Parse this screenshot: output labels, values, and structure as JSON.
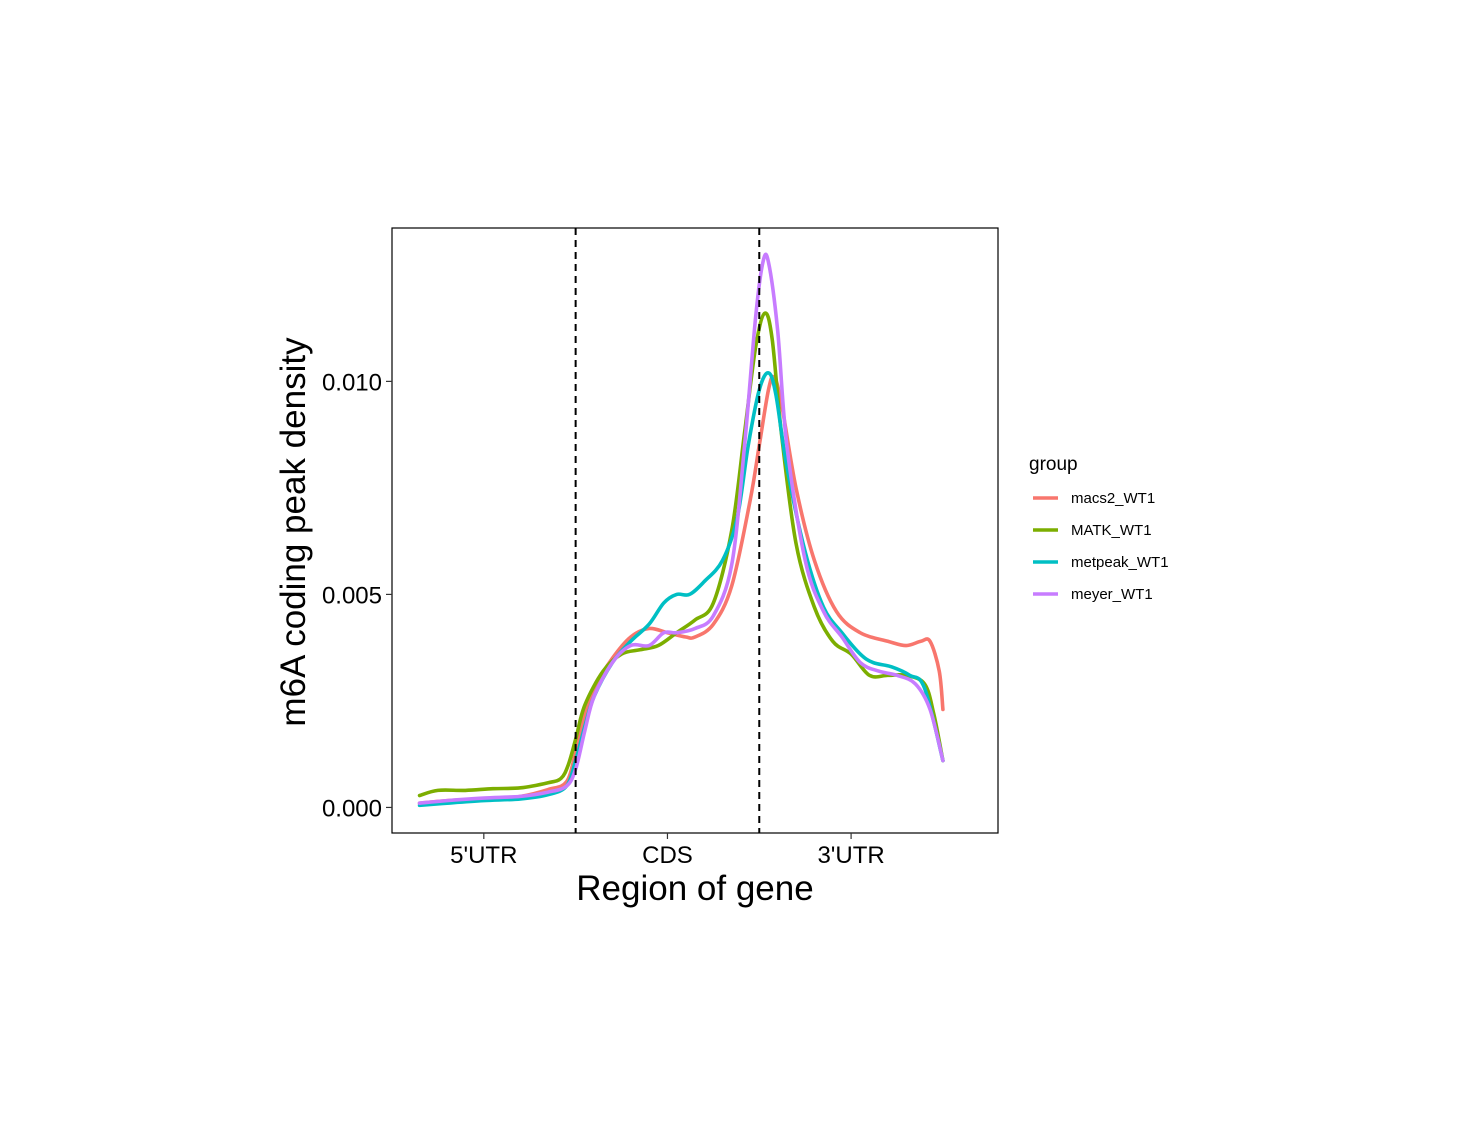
{
  "chart_data": {
    "type": "line",
    "xlabel": "Region of gene",
    "ylabel": "m6A coding peak density",
    "xlim": [
      0,
      3.3
    ],
    "ylim": [
      -0.0006,
      0.0136
    ],
    "x_ticks": [
      {
        "value": 0.5,
        "label": "5'UTR"
      },
      {
        "value": 1.5,
        "label": "CDS"
      },
      {
        "value": 2.5,
        "label": "3'UTR"
      }
    ],
    "y_ticks": [
      {
        "value": 0.0,
        "label": "0.000"
      },
      {
        "value": 0.005,
        "label": "0.005"
      },
      {
        "value": 0.01,
        "label": "0.010"
      }
    ],
    "vlines": [
      1,
      2
    ],
    "grid": false,
    "legend": {
      "title": "group",
      "position": "right"
    },
    "series": [
      {
        "name": "macs2_WT1",
        "color": "#F8766D",
        "points": [
          [
            0.15,
            0.0001
          ],
          [
            0.3,
            0.00016
          ],
          [
            0.5,
            0.0002
          ],
          [
            0.7,
            0.00026
          ],
          [
            0.85,
            0.00042
          ],
          [
            0.95,
            0.0006
          ],
          [
            1.0,
            0.0013
          ],
          [
            1.05,
            0.0022
          ],
          [
            1.1,
            0.0028
          ],
          [
            1.2,
            0.0035
          ],
          [
            1.3,
            0.004
          ],
          [
            1.4,
            0.0042
          ],
          [
            1.5,
            0.0041
          ],
          [
            1.6,
            0.004
          ],
          [
            1.65,
            0.004
          ],
          [
            1.75,
            0.0043
          ],
          [
            1.85,
            0.0052
          ],
          [
            1.95,
            0.0072
          ],
          [
            2.0,
            0.0085
          ],
          [
            2.05,
            0.0098
          ],
          [
            2.08,
            0.0101
          ],
          [
            2.12,
            0.0095
          ],
          [
            2.2,
            0.0075
          ],
          [
            2.3,
            0.0058
          ],
          [
            2.42,
            0.0046
          ],
          [
            2.55,
            0.0041
          ],
          [
            2.7,
            0.0039
          ],
          [
            2.8,
            0.0038
          ],
          [
            2.88,
            0.0039
          ],
          [
            2.93,
            0.0039
          ],
          [
            2.98,
            0.0032
          ],
          [
            3.0,
            0.0023
          ]
        ]
      },
      {
        "name": "MATK_WT1",
        "color": "#7CAE00",
        "points": [
          [
            0.15,
            0.00028
          ],
          [
            0.25,
            0.0004
          ],
          [
            0.4,
            0.0004
          ],
          [
            0.55,
            0.00044
          ],
          [
            0.7,
            0.00046
          ],
          [
            0.85,
            0.00058
          ],
          [
            0.92,
            0.00068
          ],
          [
            0.96,
            0.001
          ],
          [
            1.0,
            0.0016
          ],
          [
            1.05,
            0.0024
          ],
          [
            1.15,
            0.0032
          ],
          [
            1.25,
            0.0036
          ],
          [
            1.35,
            0.0037
          ],
          [
            1.45,
            0.0038
          ],
          [
            1.55,
            0.0041
          ],
          [
            1.65,
            0.0044
          ],
          [
            1.75,
            0.0048
          ],
          [
            1.85,
            0.0065
          ],
          [
            1.92,
            0.0088
          ],
          [
            1.98,
            0.0108
          ],
          [
            2.03,
            0.0116
          ],
          [
            2.07,
            0.011
          ],
          [
            2.12,
            0.0088
          ],
          [
            2.2,
            0.0062
          ],
          [
            2.3,
            0.0047
          ],
          [
            2.4,
            0.0039
          ],
          [
            2.5,
            0.0036
          ],
          [
            2.6,
            0.0031
          ],
          [
            2.7,
            0.0031
          ],
          [
            2.8,
            0.0031
          ],
          [
            2.9,
            0.0029
          ],
          [
            2.95,
            0.0022
          ],
          [
            3.0,
            0.0011
          ]
        ]
      },
      {
        "name": "metpeak_WT1",
        "color": "#00BFC4",
        "points": [
          [
            0.15,
            5e-05
          ],
          [
            0.3,
            0.0001
          ],
          [
            0.5,
            0.00016
          ],
          [
            0.7,
            0.0002
          ],
          [
            0.85,
            0.0003
          ],
          [
            0.95,
            0.0005
          ],
          [
            1.0,
            0.0011
          ],
          [
            1.05,
            0.0019
          ],
          [
            1.1,
            0.0026
          ],
          [
            1.2,
            0.0034
          ],
          [
            1.3,
            0.0039
          ],
          [
            1.4,
            0.0043
          ],
          [
            1.48,
            0.0048
          ],
          [
            1.55,
            0.005
          ],
          [
            1.62,
            0.005
          ],
          [
            1.7,
            0.0053
          ],
          [
            1.8,
            0.0058
          ],
          [
            1.88,
            0.0068
          ],
          [
            1.94,
            0.0085
          ],
          [
            2.0,
            0.0098
          ],
          [
            2.05,
            0.0102
          ],
          [
            2.09,
            0.0097
          ],
          [
            2.15,
            0.008
          ],
          [
            2.25,
            0.006
          ],
          [
            2.35,
            0.0047
          ],
          [
            2.45,
            0.0041
          ],
          [
            2.55,
            0.0036
          ],
          [
            2.62,
            0.0034
          ],
          [
            2.72,
            0.0033
          ],
          [
            2.82,
            0.0031
          ],
          [
            2.9,
            0.0028
          ],
          [
            3.0,
            0.0011
          ]
        ]
      },
      {
        "name": "meyer_WT1",
        "color": "#C77CFF",
        "points": [
          [
            0.15,
            0.0001
          ],
          [
            0.3,
            0.00016
          ],
          [
            0.5,
            0.00022
          ],
          [
            0.7,
            0.00026
          ],
          [
            0.85,
            0.00036
          ],
          [
            0.95,
            0.0005
          ],
          [
            1.0,
            0.0009
          ],
          [
            1.05,
            0.0018
          ],
          [
            1.1,
            0.0026
          ],
          [
            1.2,
            0.0034
          ],
          [
            1.3,
            0.0038
          ],
          [
            1.4,
            0.0038
          ],
          [
            1.48,
            0.0041
          ],
          [
            1.55,
            0.0041
          ],
          [
            1.65,
            0.0042
          ],
          [
            1.75,
            0.0045
          ],
          [
            1.85,
            0.0057
          ],
          [
            1.92,
            0.0085
          ],
          [
            1.98,
            0.0115
          ],
          [
            2.02,
            0.0128
          ],
          [
            2.05,
            0.0128
          ],
          [
            2.1,
            0.0112
          ],
          [
            2.15,
            0.0085
          ],
          [
            2.25,
            0.0058
          ],
          [
            2.35,
            0.0046
          ],
          [
            2.45,
            0.004
          ],
          [
            2.55,
            0.0034
          ],
          [
            2.65,
            0.0032
          ],
          [
            2.75,
            0.0031
          ],
          [
            2.85,
            0.0029
          ],
          [
            2.93,
            0.0023
          ],
          [
            3.0,
            0.0011
          ]
        ]
      }
    ]
  }
}
